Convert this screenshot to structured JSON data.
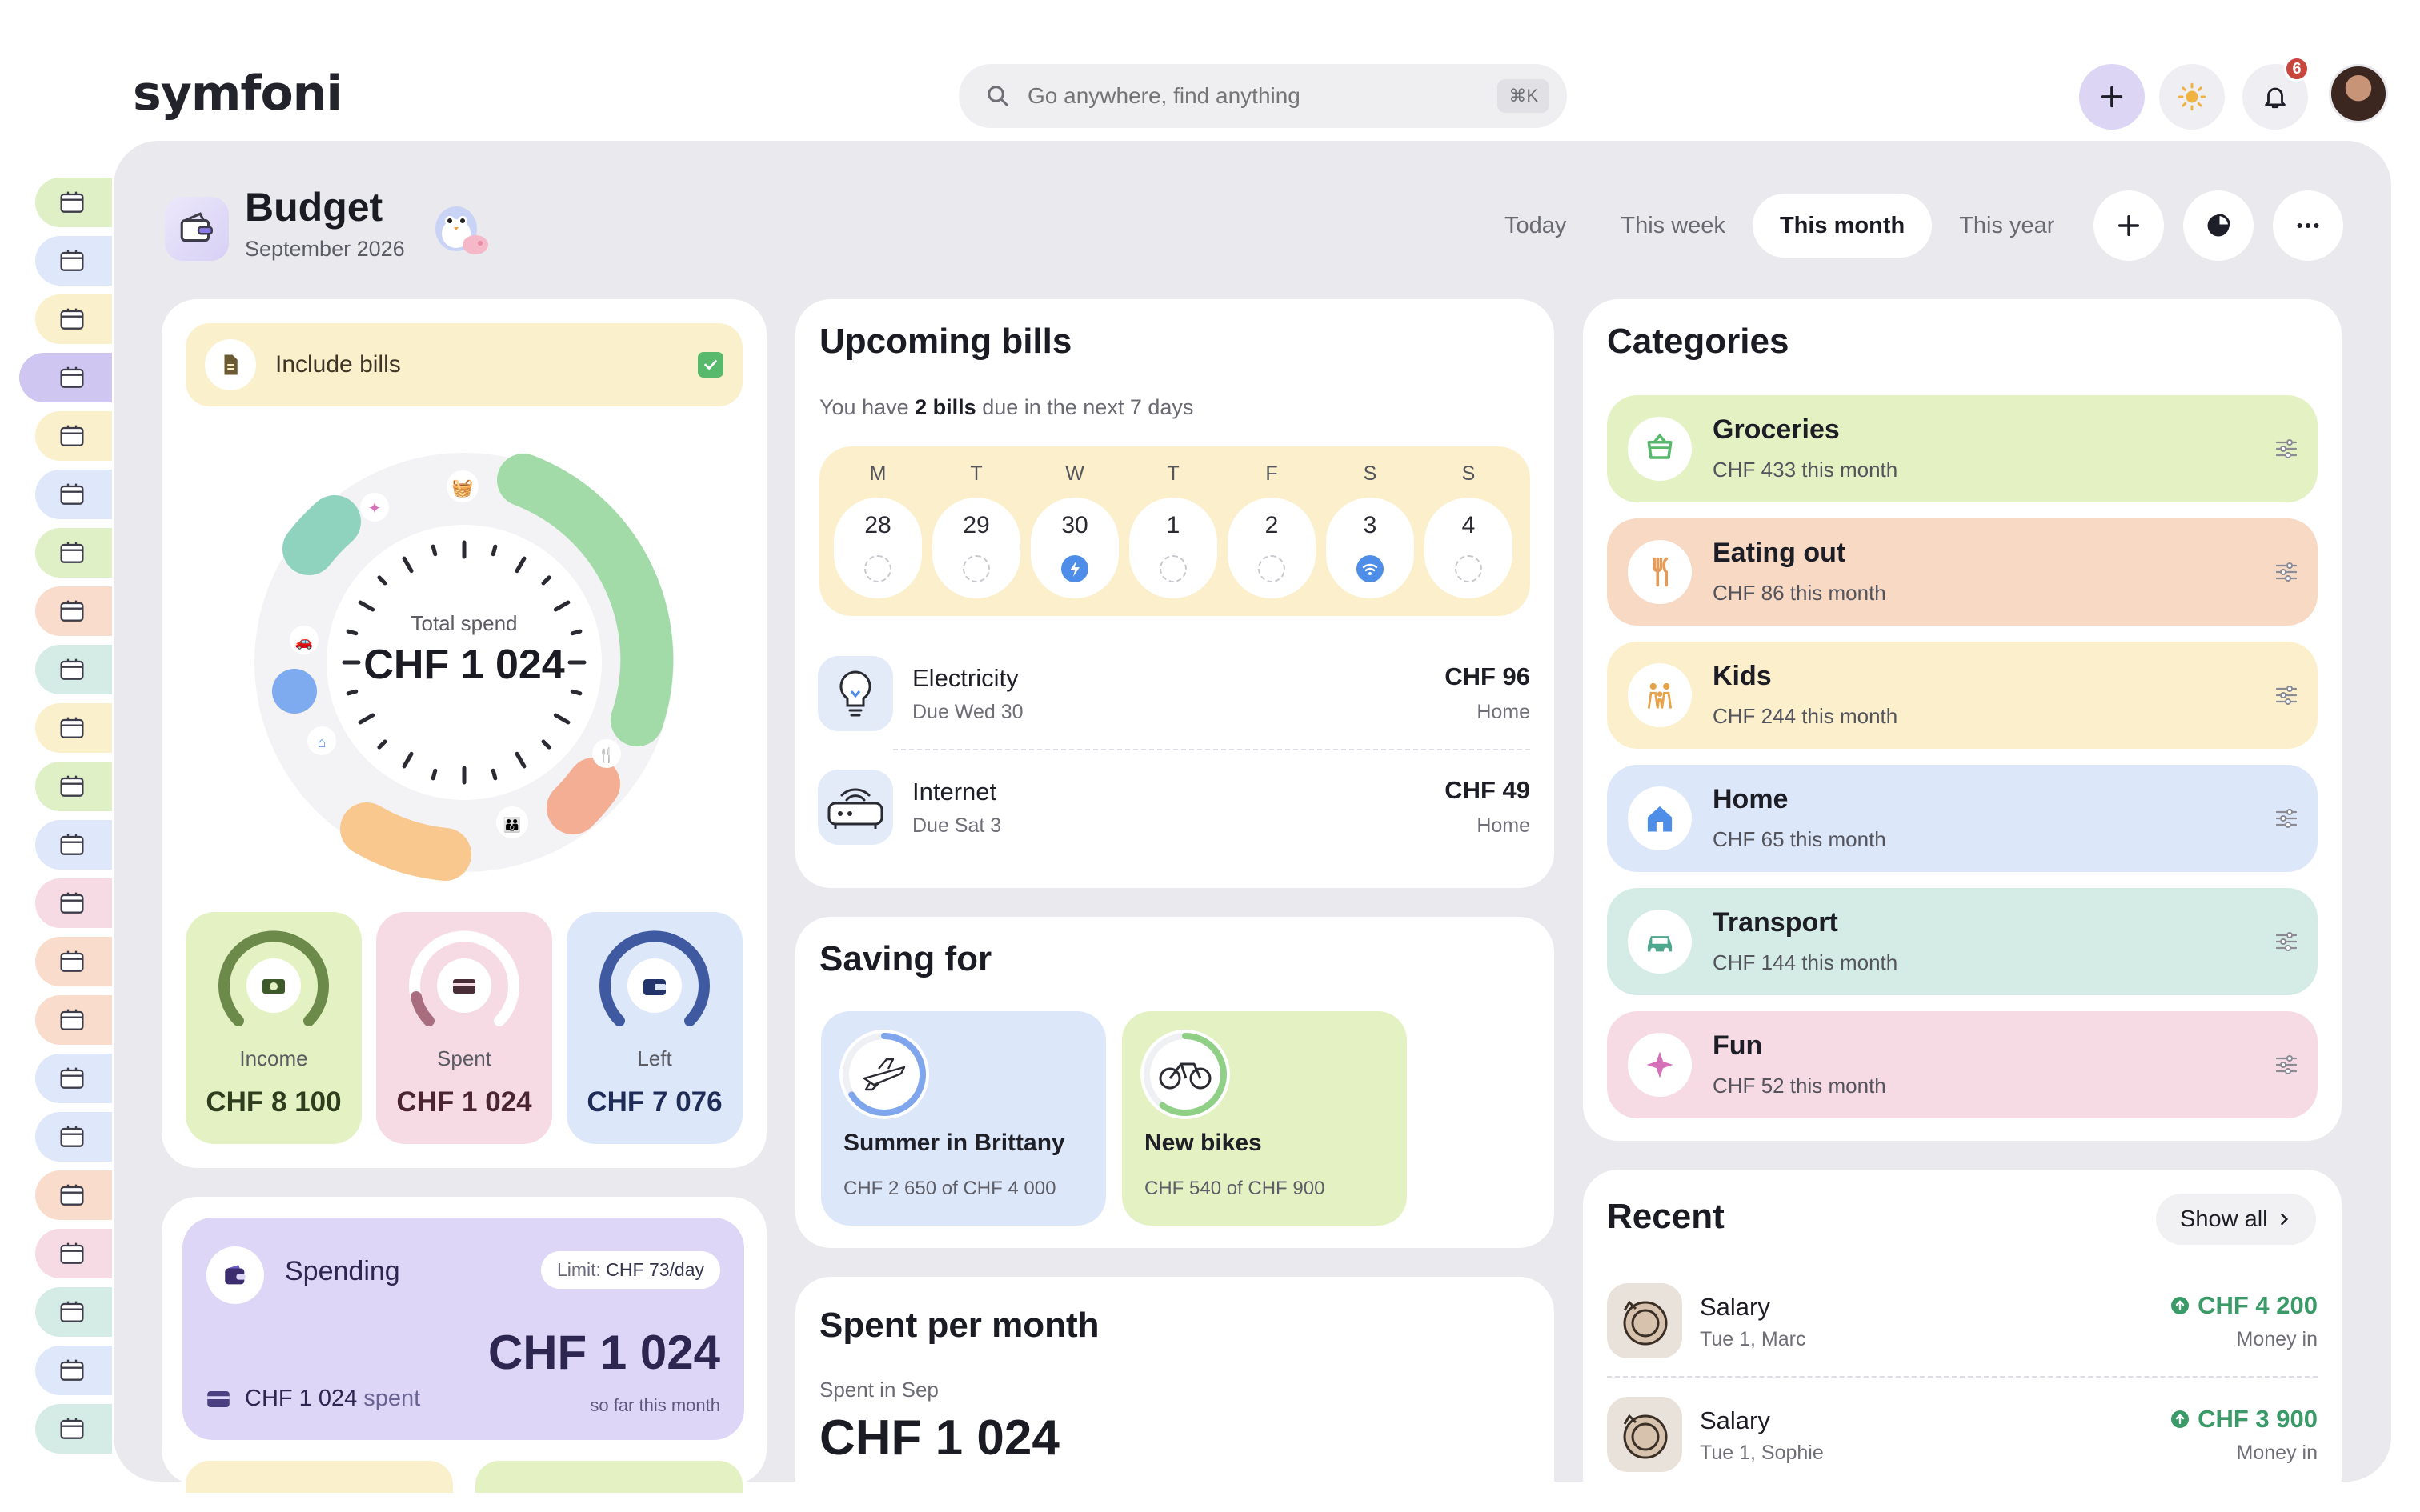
{
  "app": {
    "logo": "symfoni"
  },
  "search": {
    "placeholder": "Go anywhere, find anything",
    "shortcut": "⌘K"
  },
  "notifications": {
    "count": "6"
  },
  "sidebar": {
    "items": [
      {
        "name": "home",
        "color": "#dff0c6"
      },
      {
        "name": "bills",
        "color": "#dfe7fa"
      },
      {
        "name": "documents",
        "color": "#fbf0cc"
      },
      {
        "name": "budget",
        "color": "#cfc6f2",
        "active": true
      },
      {
        "name": "cleaning",
        "color": "#fbf0cc"
      },
      {
        "name": "checklist",
        "color": "#dfe7fa"
      },
      {
        "name": "recipes",
        "color": "#dff0c6"
      },
      {
        "name": "meals",
        "color": "#f9dccb"
      },
      {
        "name": "calendar",
        "color": "#d4ece5"
      },
      {
        "name": "school",
        "color": "#fbf0cc"
      },
      {
        "name": "car",
        "color": "#dff0c6"
      },
      {
        "name": "garden",
        "color": "#dfe7fa"
      },
      {
        "name": "camera",
        "color": "#f7dbe4"
      },
      {
        "name": "storage",
        "color": "#f9dccb"
      },
      {
        "name": "hobby",
        "color": "#f9dccb"
      },
      {
        "name": "weather",
        "color": "#dfe7fa"
      },
      {
        "name": "reading",
        "color": "#dfe7fa"
      },
      {
        "name": "photos",
        "color": "#f9dccb"
      },
      {
        "name": "letters",
        "color": "#f7dbe4"
      },
      {
        "name": "house",
        "color": "#d4ece5"
      },
      {
        "name": "library",
        "color": "#dfe7fa"
      },
      {
        "name": "pets",
        "color": "#d4ece5"
      }
    ]
  },
  "header": {
    "title": "Budget",
    "subtitle": "September 2026",
    "tabs": [
      {
        "label": "Today"
      },
      {
        "label": "This week"
      },
      {
        "label": "This month",
        "active": true
      },
      {
        "label": "This year"
      }
    ]
  },
  "overview": {
    "include_bills": "Include bills",
    "total_label": "Total spend",
    "total_value": "CHF 1 024",
    "income": {
      "label": "Income",
      "value": "CHF 8 100",
      "fraction": 1.0
    },
    "spent": {
      "label": "Spent",
      "value": "CHF 1 024",
      "fraction": 0.13
    },
    "left": {
      "label": "Left",
      "value": "CHF 7 076",
      "fraction": 0.87
    }
  },
  "spending": {
    "title": "Spending",
    "limit_label": "Limit:",
    "limit_value": "CHF 73/day",
    "amount": "CHF 1 024",
    "spent_amount": "CHF 1 024",
    "spent_word": "spent",
    "note": "so far this month"
  },
  "bills": {
    "title": "Upcoming bills",
    "summary_pre": "You have",
    "summary_count": "2 bills",
    "summary_post": "due in the next 7 days",
    "week": [
      {
        "wd": "M",
        "day": "28",
        "due": false
      },
      {
        "wd": "T",
        "day": "29",
        "due": false
      },
      {
        "wd": "W",
        "day": "30",
        "due": true,
        "icon": "bolt"
      },
      {
        "wd": "T",
        "day": "1",
        "due": false
      },
      {
        "wd": "F",
        "day": "2",
        "due": false
      },
      {
        "wd": "S",
        "day": "3",
        "due": true,
        "icon": "wifi"
      },
      {
        "wd": "S",
        "day": "4",
        "due": false
      }
    ],
    "items": [
      {
        "name": "Electricity",
        "due": "Due Wed 30",
        "amount": "CHF 96",
        "category": "Home",
        "icon": "lightbulb-icon"
      },
      {
        "name": "Internet",
        "due": "Due Sat 3",
        "amount": "CHF 49",
        "category": "Home",
        "icon": "router-icon"
      }
    ]
  },
  "saving": {
    "title": "Saving for",
    "goals": [
      {
        "name": "Summer in Brittany",
        "progress_text": "CHF 2 650 of CHF 4 000",
        "fraction": 0.66,
        "color": "#dde7fa",
        "ring": "#7fa6ec",
        "icon": "airplane-icon"
      },
      {
        "name": "New bikes",
        "progress_text": "CHF 540 of CHF 900",
        "fraction": 0.6,
        "color": "#e4f1c3",
        "ring": "#8fcf86",
        "icon": "bicycle-icon"
      }
    ]
  },
  "spent_per_month": {
    "title": "Spent per month",
    "label": "Spent in Sep",
    "value": "CHF 1 024"
  },
  "categories": {
    "title": "Categories",
    "items": [
      {
        "name": "Groceries",
        "amount": "CHF 433 this month",
        "color": "#e4f1c3",
        "icon": "basket-icon",
        "iconColor": "#58b86b"
      },
      {
        "name": "Eating out",
        "amount": "CHF 86 this month",
        "color": "#f7d9c4",
        "icon": "cutlery-icon",
        "iconColor": "#e69a5a"
      },
      {
        "name": "Kids",
        "amount": "CHF 244 this month",
        "color": "#fbefcc",
        "icon": "family-icon",
        "iconColor": "#e6a34a"
      },
      {
        "name": "Home",
        "amount": "CHF 65 this month",
        "color": "#dde7fa",
        "icon": "house-icon",
        "iconColor": "#4e8ee8"
      },
      {
        "name": "Transport",
        "amount": "CHF 144 this month",
        "color": "#d4ece5",
        "icon": "car-icon",
        "iconColor": "#4fa88e"
      },
      {
        "name": "Fun",
        "amount": "CHF 52 this month",
        "color": "#f7dbe4",
        "icon": "sparkle-icon",
        "iconColor": "#d670b8"
      }
    ]
  },
  "recent": {
    "title": "Recent",
    "show_all": "Show all",
    "items": [
      {
        "name": "Salary",
        "sub": "Tue 1, Marc",
        "amount": "CHF 4 200",
        "kind": "Money in"
      },
      {
        "name": "Salary",
        "sub": "Tue 1, Sophie",
        "amount": "CHF 3 900",
        "kind": "Money in"
      }
    ]
  }
}
